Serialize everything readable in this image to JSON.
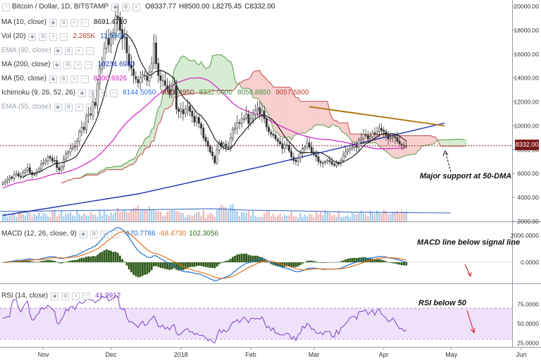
{
  "header": {
    "title": "Bitcoin / Dollar, 1D, BITSTAMP",
    "ohlc": [
      {
        "key": "O",
        "value": "8337.77"
      },
      {
        "key": "H",
        "value": "8500.00"
      },
      {
        "key": "L",
        "value": "8275.45"
      },
      {
        "key": "C",
        "value": "8332.00"
      }
    ]
  },
  "legend": [
    {
      "label": "MA (10, close)",
      "values": [
        "8691.4710"
      ],
      "colors": [
        "#111111"
      ],
      "dim": false
    },
    {
      "label": "Vol (20)",
      "values": [
        "2.265K",
        "11.596K"
      ],
      "colors": [
        "#c0392b",
        "#1e63c8"
      ],
      "dim": false
    },
    {
      "label": "EMA (90, close)",
      "values": [],
      "colors": [],
      "dim": true
    },
    {
      "label": "MA (200, close)",
      "values": [
        "10234.6980"
      ],
      "colors": [
        "#1a2db0"
      ],
      "dim": false
    },
    {
      "label": "MA (50, close)",
      "values": [
        "8300.6926"
      ],
      "colors": [
        "#d21fc8"
      ],
      "dim": false
    },
    {
      "label": "Ichimoku (9, 26, 52, 26)",
      "values": [
        "8144.5050",
        "9024.4950",
        "8332.0000",
        "8056.8850",
        "9057.5800"
      ],
      "colors": [
        "#2a6fd6",
        "#8a2a2a",
        "#4a8f3a",
        "#4a8f3a",
        "#c0392b"
      ],
      "dim": false
    },
    {
      "label": "EMA (55, close)",
      "values": [],
      "colors": [],
      "dim": true
    }
  ],
  "price_tag": "8332.00",
  "price_axis": [
    "20000.00",
    "18000.00",
    "16000.00",
    "14000.00",
    "12000.00",
    "10000.00",
    "8000.00",
    "6000.00",
    "4000.00",
    "2000.00"
  ],
  "macd": {
    "label": "MACD (12, 26, close, 9)",
    "values": [
      "-170.7786",
      "-68.4730",
      "102.3056"
    ],
    "colors": [
      "#1f6fd1",
      "#e07020",
      "#2e6e1e"
    ],
    "axis": [
      "2000.0000",
      "0.0000"
    ]
  },
  "rsi": {
    "label": "RSI (14, close)",
    "value": "41.9912",
    "axis": [
      "75.0000",
      "50.0000",
      "25.0000"
    ]
  },
  "time_axis": [
    "Nov",
    "Dec",
    "2018",
    "Feb",
    "Mar",
    "Apr",
    "May",
    "Jun"
  ],
  "annotations": {
    "support": "Major support at 50-DMA",
    "macd": "MACD line below signal line",
    "rsi": "RSI below 50"
  },
  "chart_data": [
    {
      "type": "line",
      "series_kind": "candlestick",
      "x_start": "2017-10-14",
      "ylim": [
        2000,
        20000
      ],
      "close": [
        5200,
        5350,
        5500,
        5700,
        5600,
        5900,
        6000,
        5800,
        5750,
        6100,
        6300,
        6500,
        6100,
        5900,
        5950,
        6200,
        6400,
        6800,
        6900,
        7100,
        7400,
        7300,
        7050,
        7100,
        6500,
        6300,
        6600,
        7200,
        7700,
        7800,
        8100,
        8200,
        8300,
        8700,
        9500,
        9900,
        9700,
        10800,
        11000,
        10900,
        12000,
        11700,
        13500,
        14800,
        15200,
        16500,
        17300,
        16800,
        17600,
        17800,
        19200,
        19000,
        18000,
        17300,
        17500,
        16100,
        15100,
        14800,
        14200,
        13900,
        13600,
        14000,
        14300,
        14200,
        13800,
        14500,
        15200,
        16900,
        15200,
        14200,
        13800,
        13800,
        13400,
        13100,
        12600,
        13000,
        13400,
        11400,
        11200,
        11400,
        11000,
        11400,
        11600,
        11200,
        10800,
        10300,
        10700,
        10200,
        9800,
        9000,
        8700,
        8300,
        7800,
        7500,
        6900,
        8000,
        8600,
        8300,
        8500,
        8200,
        8200,
        9000,
        9700,
        9800,
        10300,
        10200,
        10600,
        10600,
        11000,
        10200,
        10600,
        10900,
        11300,
        11500,
        11000,
        11300,
        10600,
        9900,
        9500,
        9300,
        9200,
        8900,
        8700,
        8500,
        8100,
        8400,
        8400,
        7900,
        7400,
        7100,
        7000,
        7300,
        7700,
        8100,
        8200,
        8600,
        8200,
        7800,
        7600,
        7400,
        7000,
        6900,
        6900,
        7000,
        7100,
        7000,
        6800,
        6700,
        6900,
        6800,
        7100,
        7500,
        7800,
        8000,
        8100,
        8200,
        8300,
        8200,
        8800,
        8900,
        9300,
        9200,
        8900,
        9100,
        9400,
        9300,
        9500,
        9800,
        9600,
        9500,
        9200,
        8900,
        9000,
        9100,
        9000,
        8700,
        8500,
        8400,
        8300,
        8332
      ],
      "ma200_endpoints": [
        [
          0,
          2500
        ],
        [
          60,
          4300
        ],
        [
          115,
          6600
        ],
        [
          196,
          10234.698
        ]
      ],
      "trendline": [
        [
          136,
          11600
        ],
        [
          196,
          10000
        ]
      ],
      "support_level": 8332
    },
    {
      "type": "bar",
      "name": "MACD",
      "axis": [
        -2000,
        2000
      ]
    },
    {
      "type": "line",
      "name": "RSI",
      "ylim": [
        20,
        100
      ],
      "bands": [
        30,
        70
      ],
      "last": 41.9912
    }
  ]
}
